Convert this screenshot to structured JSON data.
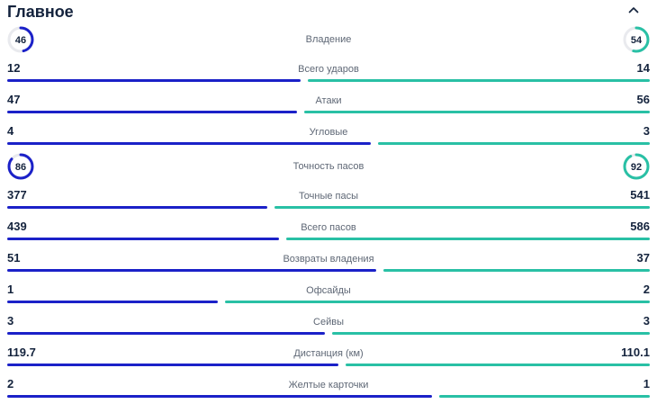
{
  "header": {
    "title": "Главное",
    "collapse_icon": "chevron-up-icon"
  },
  "colors": {
    "home": "#1b21c8",
    "away": "#29c0a5",
    "ring_track": "#e9eaee",
    "value_text": "#14233d",
    "label_text": "#5e6775"
  },
  "chart_data": {
    "type": "bar",
    "title": "Главное",
    "legend_position": "none",
    "description": "Football match statistics comparison, home (blue, left) vs away (teal, right); bar lengths proportional to each side's share",
    "categories": [
      "Владение",
      "Всего ударов",
      "Атаки",
      "Угловые",
      "Точность пасов",
      "Точные пасы",
      "Всего пасов",
      "Возвраты владения",
      "Офсайды",
      "Сейвы",
      "Дистанция (км)",
      "Желтые карточки"
    ],
    "series": [
      {
        "name": "home",
        "values": [
          46,
          12,
          47,
          4,
          86,
          377,
          439,
          51,
          1,
          3,
          119.7,
          2
        ]
      },
      {
        "name": "away",
        "values": [
          54,
          14,
          56,
          3,
          92,
          541,
          586,
          37,
          2,
          3,
          110.1,
          1
        ]
      }
    ],
    "rows": [
      {
        "label": "Владение",
        "home": 46,
        "away": 54,
        "display": "circle"
      },
      {
        "label": "Всего ударов",
        "home": 12,
        "away": 14,
        "display": "bar"
      },
      {
        "label": "Атаки",
        "home": 47,
        "away": 56,
        "display": "bar"
      },
      {
        "label": "Угловые",
        "home": 4,
        "away": 3,
        "display": "bar"
      },
      {
        "label": "Точность пасов",
        "home": 86,
        "away": 92,
        "display": "circle"
      },
      {
        "label": "Точные пасы",
        "home": 377,
        "away": 541,
        "display": "bar"
      },
      {
        "label": "Всего пасов",
        "home": 439,
        "away": 586,
        "display": "bar"
      },
      {
        "label": "Возвраты владения",
        "home": 51,
        "away": 37,
        "display": "bar"
      },
      {
        "label": "Офсайды",
        "home": 1,
        "away": 2,
        "display": "bar"
      },
      {
        "label": "Сейвы",
        "home": 3,
        "away": 3,
        "display": "bar"
      },
      {
        "label": "Дистанция (км)",
        "home": 119.7,
        "away": 110.1,
        "display": "bar"
      },
      {
        "label": "Желтые карточки",
        "home": 2,
        "away": 1,
        "display": "bar"
      }
    ]
  }
}
